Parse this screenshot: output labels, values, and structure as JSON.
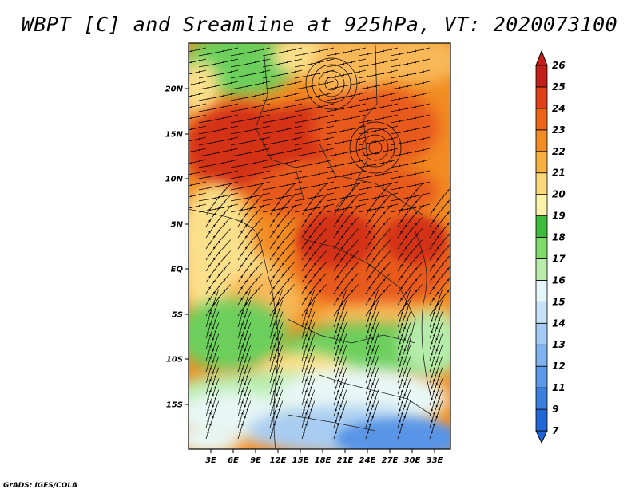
{
  "title": "WBPT [C] and Sreamline at 925hPa, VT: 2020073100",
  "credit": "GrADS: IGES/COLA",
  "map": {
    "lat_ticks": [
      "20N",
      "15N",
      "10N",
      "5N",
      "EQ",
      "5S",
      "10S",
      "15S"
    ],
    "lon_ticks": [
      "3E",
      "6E",
      "9E",
      "12E",
      "15E",
      "18E",
      "21E",
      "24E",
      "27E",
      "30E",
      "33E"
    ]
  },
  "colorbar": {
    "levels": [
      "7",
      "9",
      "11",
      "12",
      "13",
      "14",
      "15",
      "16",
      "17",
      "18",
      "19",
      "20",
      "21",
      "22",
      "23",
      "24",
      "25",
      "26"
    ],
    "colors": [
      "#2166d6",
      "#3a7fe0",
      "#5a98ea",
      "#7fb2f0",
      "#a3cbf5",
      "#c6e1f8",
      "#e6f5f8",
      "#b9ecaa",
      "#7edb6a",
      "#3cba3a",
      "#fdf3a8",
      "#fbd978",
      "#f8b040",
      "#f28c22",
      "#ec6418",
      "#e0401a",
      "#c41e1a"
    ]
  },
  "palette": {
    "red": "#d43018",
    "orange_red": "#e85a1c",
    "orange": "#f28c22",
    "light_orange": "#f8b858",
    "yellow": "#fbe08c",
    "green": "#6ccf5c",
    "light_green": "#b6ecaa",
    "pale": "#e8f7f4",
    "light_blue": "#a8ccf2",
    "blue": "#5a94e6"
  }
}
